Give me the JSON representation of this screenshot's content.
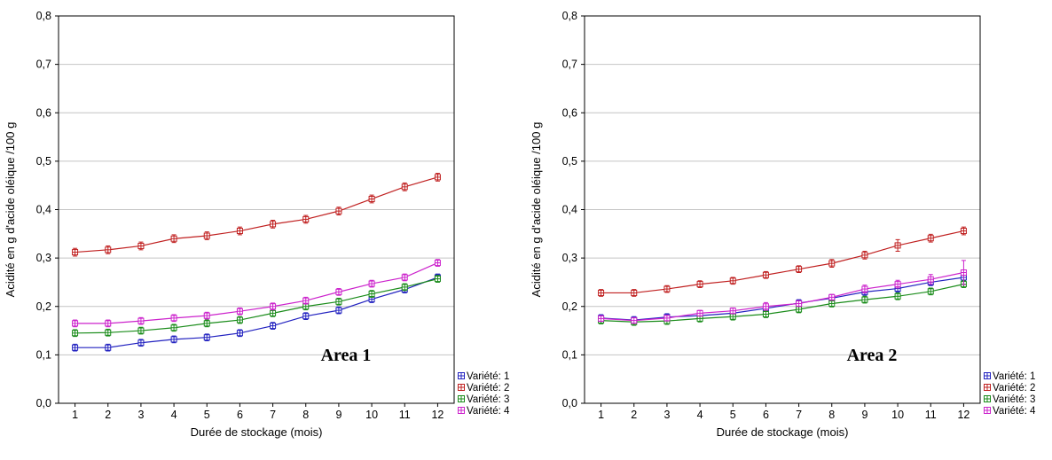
{
  "colors": {
    "background": "#ffffff",
    "frame": "#000000",
    "grid": "#c4c4c4",
    "axis_text": "#000000"
  },
  "chart_data": [
    {
      "type": "line",
      "area_label": "Area 1",
      "xlabel": "Durée de stockage (mois)",
      "ylabel": "Acidité en g d'acide oléique /100 g",
      "x": [
        1,
        2,
        3,
        4,
        5,
        6,
        7,
        8,
        9,
        10,
        11,
        12
      ],
      "xtick_labels": [
        "1",
        "2",
        "3",
        "4",
        "5",
        "6",
        "7",
        "8",
        "9",
        "10",
        "11",
        "12"
      ],
      "xlim": [
        0.5,
        12.5
      ],
      "ylim": [
        0.0,
        0.8
      ],
      "yticks": [
        0.0,
        0.1,
        0.2,
        0.3,
        0.4,
        0.5,
        0.6,
        0.7,
        0.8
      ],
      "ytick_labels": [
        "0,0",
        "0,1",
        "0,2",
        "0,3",
        "0,4",
        "0,5",
        "0,6",
        "0,7",
        "0,8"
      ],
      "grid": "horizontal",
      "legend_position": "outside-bottom-right",
      "marker": "square-cross",
      "series": [
        {
          "name": "Variété: 1",
          "color": "#2222c0",
          "error": 0.007,
          "values": [
            0.115,
            0.115,
            0.125,
            0.132,
            0.136,
            0.145,
            0.16,
            0.18,
            0.192,
            0.215,
            0.235,
            0.26
          ]
        },
        {
          "name": "Variété: 2",
          "color": "#c02020",
          "error": 0.008,
          "values": [
            0.312,
            0.317,
            0.325,
            0.34,
            0.346,
            0.356,
            0.37,
            0.38,
            0.397,
            0.422,
            0.447,
            0.467
          ]
        },
        {
          "name": "Variété: 3",
          "color": "#1a8c1a",
          "error": 0.007,
          "values": [
            0.145,
            0.146,
            0.15,
            0.156,
            0.165,
            0.172,
            0.186,
            0.2,
            0.21,
            0.226,
            0.24,
            0.257
          ]
        },
        {
          "name": "Variété: 4",
          "color": "#cc22cc",
          "error": 0.007,
          "values": [
            0.165,
            0.165,
            0.17,
            0.176,
            0.181,
            0.19,
            0.2,
            0.212,
            0.23,
            0.247,
            0.26,
            0.29
          ]
        }
      ]
    },
    {
      "type": "line",
      "area_label": "Area 2",
      "xlabel": "Durée de stockage (mois)",
      "ylabel": "Acidité en g d'acide oléique /100 g",
      "x": [
        1,
        2,
        3,
        4,
        5,
        6,
        7,
        8,
        9,
        10,
        11,
        12
      ],
      "xtick_labels": [
        "1",
        "2",
        "3",
        "4",
        "5",
        "6",
        "7",
        "8",
        "9",
        "10",
        "11",
        "12"
      ],
      "xlim": [
        0.5,
        12.5
      ],
      "ylim": [
        0.0,
        0.8
      ],
      "yticks": [
        0.0,
        0.1,
        0.2,
        0.3,
        0.4,
        0.5,
        0.6,
        0.7,
        0.8
      ],
      "ytick_labels": [
        "0,0",
        "0,1",
        "0,2",
        "0,3",
        "0,4",
        "0,5",
        "0,6",
        "0,7",
        "0,8"
      ],
      "grid": "horizontal",
      "legend_position": "outside-bottom-right",
      "marker": "square-cross",
      "series": [
        {
          "name": "Variété: 1",
          "color": "#2222c0",
          "error": 0.007,
          "values": [
            0.176,
            0.172,
            0.178,
            0.181,
            0.186,
            0.196,
            0.207,
            0.217,
            0.23,
            0.237,
            0.25,
            0.26
          ]
        },
        {
          "name": "Variété: 2",
          "color": "#c02020",
          "error": 0.008,
          "errors": [
            0.007,
            0.007,
            0.007,
            0.007,
            0.007,
            0.007,
            0.007,
            0.008,
            0.008,
            0.012,
            0.008,
            0.008
          ],
          "values": [
            0.228,
            0.228,
            0.236,
            0.246,
            0.253,
            0.265,
            0.277,
            0.289,
            0.306,
            0.326,
            0.341,
            0.356
          ]
        },
        {
          "name": "Variété: 3",
          "color": "#1a8c1a",
          "error": 0.007,
          "values": [
            0.171,
            0.168,
            0.17,
            0.175,
            0.179,
            0.184,
            0.194,
            0.206,
            0.214,
            0.221,
            0.231,
            0.246
          ]
        },
        {
          "name": "Variété: 4",
          "color": "#cc22cc",
          "error": 0.007,
          "errors": [
            0.006,
            0.006,
            0.006,
            0.006,
            0.006,
            0.008,
            0.006,
            0.006,
            0.008,
            0.008,
            0.01,
            0.025
          ],
          "values": [
            0.175,
            0.171,
            0.176,
            0.186,
            0.191,
            0.2,
            0.206,
            0.219,
            0.236,
            0.246,
            0.256,
            0.27
          ]
        }
      ]
    }
  ]
}
